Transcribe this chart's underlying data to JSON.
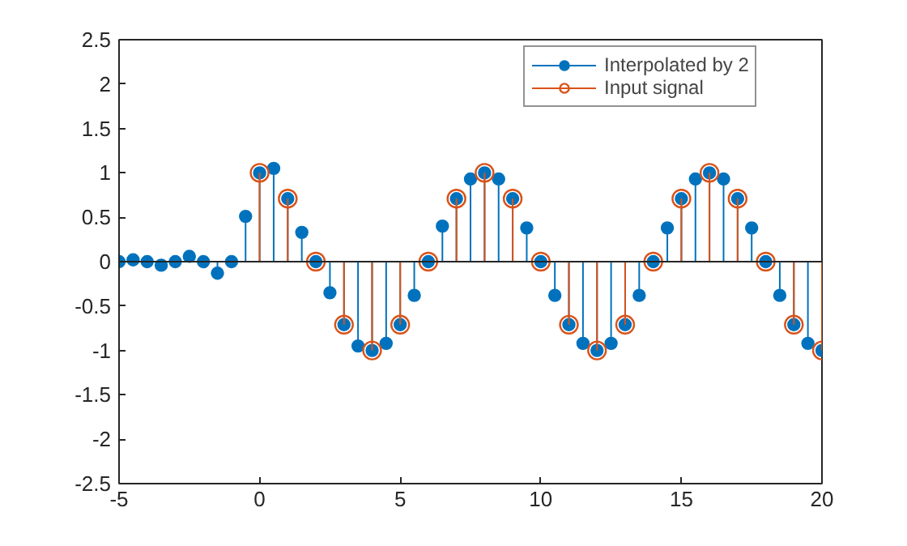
{
  "chart_data": {
    "type": "lollipop",
    "xlim": [
      -5,
      20
    ],
    "ylim": [
      -2.5,
      2.5
    ],
    "xticks": [
      -5,
      0,
      5,
      10,
      15,
      20
    ],
    "yticks": [
      -2.5,
      -2,
      -1.5,
      -1,
      -0.5,
      0,
      0.5,
      1,
      1.5,
      2,
      2.5
    ],
    "grid": false,
    "legend": "top right",
    "marker": "circle",
    "ref_lines": [
      {
        "axis": "y",
        "value": 0,
        "label": null,
        "color": "#262626"
      }
    ],
    "series": [
      {
        "name": "Interpolated by 2",
        "color": "#0072bd",
        "x": [
          -5,
          -4.5,
          -4,
          -3.5,
          -3,
          -2.5,
          -2,
          -1.5,
          -1,
          -0.5,
          0,
          0.5,
          1,
          1.5,
          2,
          2.5,
          3,
          3.5,
          4,
          4.5,
          5,
          5.5,
          6,
          6.5,
          7,
          7.5,
          8,
          8.5,
          9,
          9.5,
          10,
          10.5,
          11,
          11.5,
          12,
          12.5,
          13,
          13.5,
          14,
          14.5,
          15,
          15.5,
          16,
          16.5,
          17,
          17.5,
          18,
          18.5,
          19,
          19.5,
          20
        ],
        "values": [
          0,
          0.02,
          0,
          -0.04,
          0,
          0.06,
          0,
          -0.13,
          0,
          0.51,
          1,
          1.05,
          0.71,
          0.33,
          0,
          -0.35,
          -0.71,
          -0.95,
          -1,
          -0.92,
          -0.71,
          -0.38,
          0,
          0.4,
          0.71,
          0.93,
          1,
          0.93,
          0.71,
          0.38,
          0,
          -0.38,
          -0.71,
          -0.92,
          -1,
          -0.92,
          -0.71,
          -0.38,
          0,
          0.38,
          0.71,
          0.93,
          1,
          0.93,
          0.71,
          0.38,
          0,
          -0.38,
          -0.71,
          -0.92,
          -1
        ]
      },
      {
        "name": "Input signal",
        "color": "#d95319",
        "x": [
          0,
          1,
          2,
          3,
          4,
          5,
          6,
          7,
          8,
          9,
          10,
          11,
          12,
          13,
          14,
          15,
          16,
          17,
          18,
          19,
          20
        ],
        "values": [
          1,
          0.71,
          0,
          -0.71,
          -1,
          -0.71,
          0,
          0.71,
          1,
          0.71,
          0,
          -0.71,
          -1,
          -0.71,
          0,
          0.71,
          1,
          0.71,
          0,
          -0.71,
          -1
        ]
      }
    ]
  }
}
